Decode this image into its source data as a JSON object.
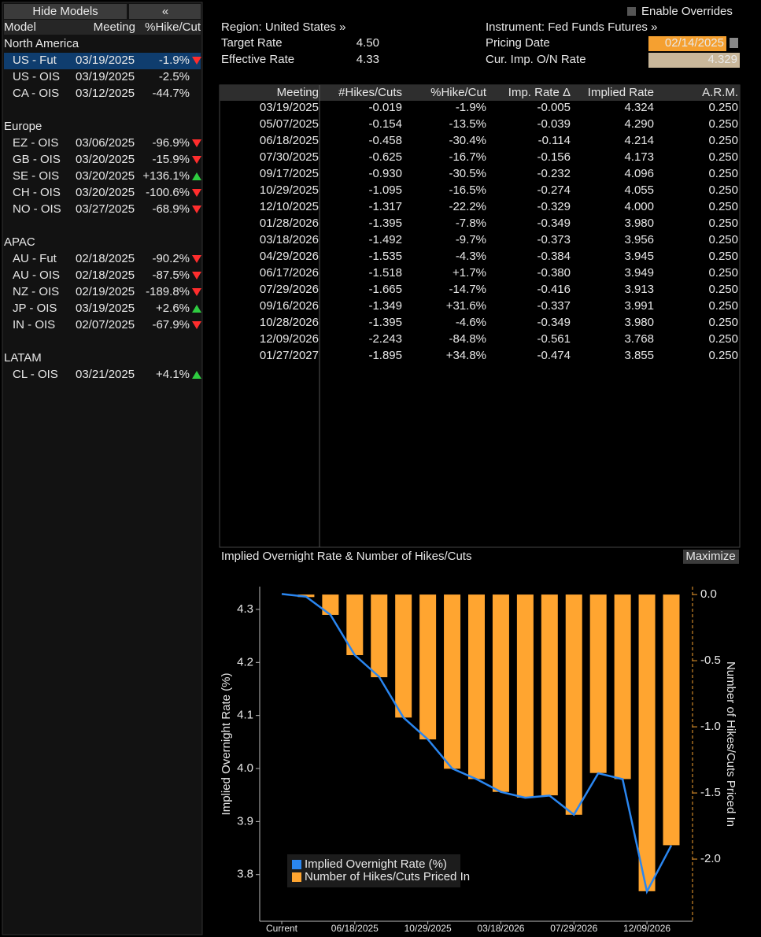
{
  "models_panel": {
    "hide_button": "Hide Models",
    "collapse_button": "«",
    "columns": [
      "Model",
      "Meeting",
      "%Hike/Cut"
    ],
    "groups": [
      {
        "name": "North America",
        "rows": [
          {
            "model": "US - Fut",
            "meeting": "03/19/2025",
            "change": "-1.9%",
            "arrow": "down",
            "selected": true
          },
          {
            "model": "US - OIS",
            "meeting": "03/19/2025",
            "change": "-2.5%"
          },
          {
            "model": "CA - OIS",
            "meeting": "03/12/2025",
            "change": "-44.7%"
          }
        ]
      },
      {
        "name": "Europe",
        "rows": [
          {
            "model": "EZ - OIS",
            "meeting": "03/06/2025",
            "change": "-96.9%",
            "arrow": "down"
          },
          {
            "model": "GB - OIS",
            "meeting": "03/20/2025",
            "change": "-15.9%",
            "arrow": "down"
          },
          {
            "model": "SE - OIS",
            "meeting": "03/20/2025",
            "change": "+136.1%",
            "arrow": "up"
          },
          {
            "model": "CH - OIS",
            "meeting": "03/20/2025",
            "change": "-100.6%",
            "arrow": "down"
          },
          {
            "model": "NO - OIS",
            "meeting": "03/27/2025",
            "change": "-68.9%",
            "arrow": "down"
          }
        ]
      },
      {
        "name": "APAC",
        "rows": [
          {
            "model": "AU - Fut",
            "meeting": "02/18/2025",
            "change": "-90.2%",
            "arrow": "down"
          },
          {
            "model": "AU - OIS",
            "meeting": "02/18/2025",
            "change": "-87.5%",
            "arrow": "down"
          },
          {
            "model": "NZ - OIS",
            "meeting": "02/19/2025",
            "change": "-189.8%",
            "arrow": "down"
          },
          {
            "model": "JP - OIS",
            "meeting": "03/19/2025",
            "change": "+2.6%",
            "arrow": "up"
          },
          {
            "model": "IN - OIS",
            "meeting": "02/07/2025",
            "change": "-67.9%",
            "arrow": "down"
          }
        ]
      },
      {
        "name": "LATAM",
        "rows": [
          {
            "model": "CL - OIS",
            "meeting": "03/21/2025",
            "change": "+4.1%",
            "arrow": "up"
          }
        ]
      }
    ]
  },
  "header": {
    "enable_overrides": "Enable Overrides",
    "region": "Region: United States »",
    "instrument": "Instrument: Fed Funds Futures »",
    "left_fields": [
      {
        "label": "Target Rate",
        "value": "4.50"
      },
      {
        "label": "Effective Rate",
        "value": "4.33"
      }
    ],
    "right_fields": [
      {
        "label": "Pricing Date",
        "value": "02/14/2025"
      },
      {
        "label": "Cur. Imp. O/N Rate",
        "value": "4.329"
      }
    ]
  },
  "table": {
    "columns": [
      "Meeting",
      "#Hikes/Cuts",
      "%Hike/Cut",
      "Imp. Rate Δ",
      "Implied Rate",
      "A.R.M."
    ],
    "rows": [
      [
        "03/19/2025",
        "-0.019",
        "-1.9%",
        "-0.005",
        "4.324",
        "0.250"
      ],
      [
        "05/07/2025",
        "-0.154",
        "-13.5%",
        "-0.039",
        "4.290",
        "0.250"
      ],
      [
        "06/18/2025",
        "-0.458",
        "-30.4%",
        "-0.114",
        "4.214",
        "0.250"
      ],
      [
        "07/30/2025",
        "-0.625",
        "-16.7%",
        "-0.156",
        "4.173",
        "0.250"
      ],
      [
        "09/17/2025",
        "-0.930",
        "-30.5%",
        "-0.232",
        "4.096",
        "0.250"
      ],
      [
        "10/29/2025",
        "-1.095",
        "-16.5%",
        "-0.274",
        "4.055",
        "0.250"
      ],
      [
        "12/10/2025",
        "-1.317",
        "-22.2%",
        "-0.329",
        "4.000",
        "0.250"
      ],
      [
        "01/28/2026",
        "-1.395",
        "-7.8%",
        "-0.349",
        "3.980",
        "0.250"
      ],
      [
        "03/18/2026",
        "-1.492",
        "-9.7%",
        "-0.373",
        "3.956",
        "0.250"
      ],
      [
        "04/29/2026",
        "-1.535",
        "-4.3%",
        "-0.384",
        "3.945",
        "0.250"
      ],
      [
        "06/17/2026",
        "-1.518",
        "+1.7%",
        "-0.380",
        "3.949",
        "0.250"
      ],
      [
        "07/29/2026",
        "-1.665",
        "-14.7%",
        "-0.416",
        "3.913",
        "0.250"
      ],
      [
        "09/16/2026",
        "-1.349",
        "+31.6%",
        "-0.337",
        "3.991",
        "0.250"
      ],
      [
        "10/28/2026",
        "-1.395",
        "-4.6%",
        "-0.349",
        "3.980",
        "0.250"
      ],
      [
        "12/09/2026",
        "-2.243",
        "-84.8%",
        "-0.561",
        "3.768",
        "0.250"
      ],
      [
        "01/27/2027",
        "-1.895",
        "+34.8%",
        "-0.474",
        "3.855",
        "0.250"
      ]
    ]
  },
  "chart_data": {
    "type": "combo",
    "title": "Implied Overnight Rate & Number of Hikes/Cuts",
    "maximize_button": "Maximize",
    "ylabel": "Implied Overnight Rate (%)",
    "y2label": "Number of Hikes/Cuts Priced In",
    "categories": [
      "Current",
      null,
      null,
      "06/18/2025",
      null,
      null,
      "10/29/2025",
      null,
      null,
      "03/18/2026",
      null,
      null,
      "07/29/2026",
      null,
      null,
      "12/09/2026",
      null
    ],
    "series": [
      {
        "name": "Implied Overnight Rate (%)",
        "type": "line",
        "color": "#2a86f0",
        "values": [
          4.329,
          4.324,
          4.29,
          4.214,
          4.173,
          4.096,
          4.055,
          4.0,
          3.98,
          3.956,
          3.945,
          3.949,
          3.913,
          3.991,
          3.98,
          3.768,
          3.855
        ]
      },
      {
        "name": "Number of Hikes/Cuts Priced In",
        "type": "bar",
        "axis": "y2",
        "color": "#ffa530",
        "values": [
          null,
          -0.019,
          -0.154,
          -0.458,
          -0.625,
          -0.93,
          -1.095,
          -1.317,
          -1.395,
          -1.492,
          -1.535,
          -1.518,
          -1.665,
          -1.349,
          -1.395,
          -2.243,
          -1.895
        ]
      }
    ],
    "ylim": [
      3.712,
      4.343
    ],
    "yticks": [
      3.8,
      3.9,
      {
        "value": 4,
        "label": "4.0"
      },
      4.1,
      4.2,
      4.3
    ],
    "y2lim": [
      -2.47,
      0.06
    ],
    "y2ticks": [
      {
        "value": -2,
        "label": "-2.0"
      },
      -1.5,
      {
        "value": -1,
        "label": "-1.0"
      },
      -0.5,
      {
        "value": 0,
        "label": "0.0"
      }
    ],
    "legend": "lower left",
    "grid": false
  }
}
